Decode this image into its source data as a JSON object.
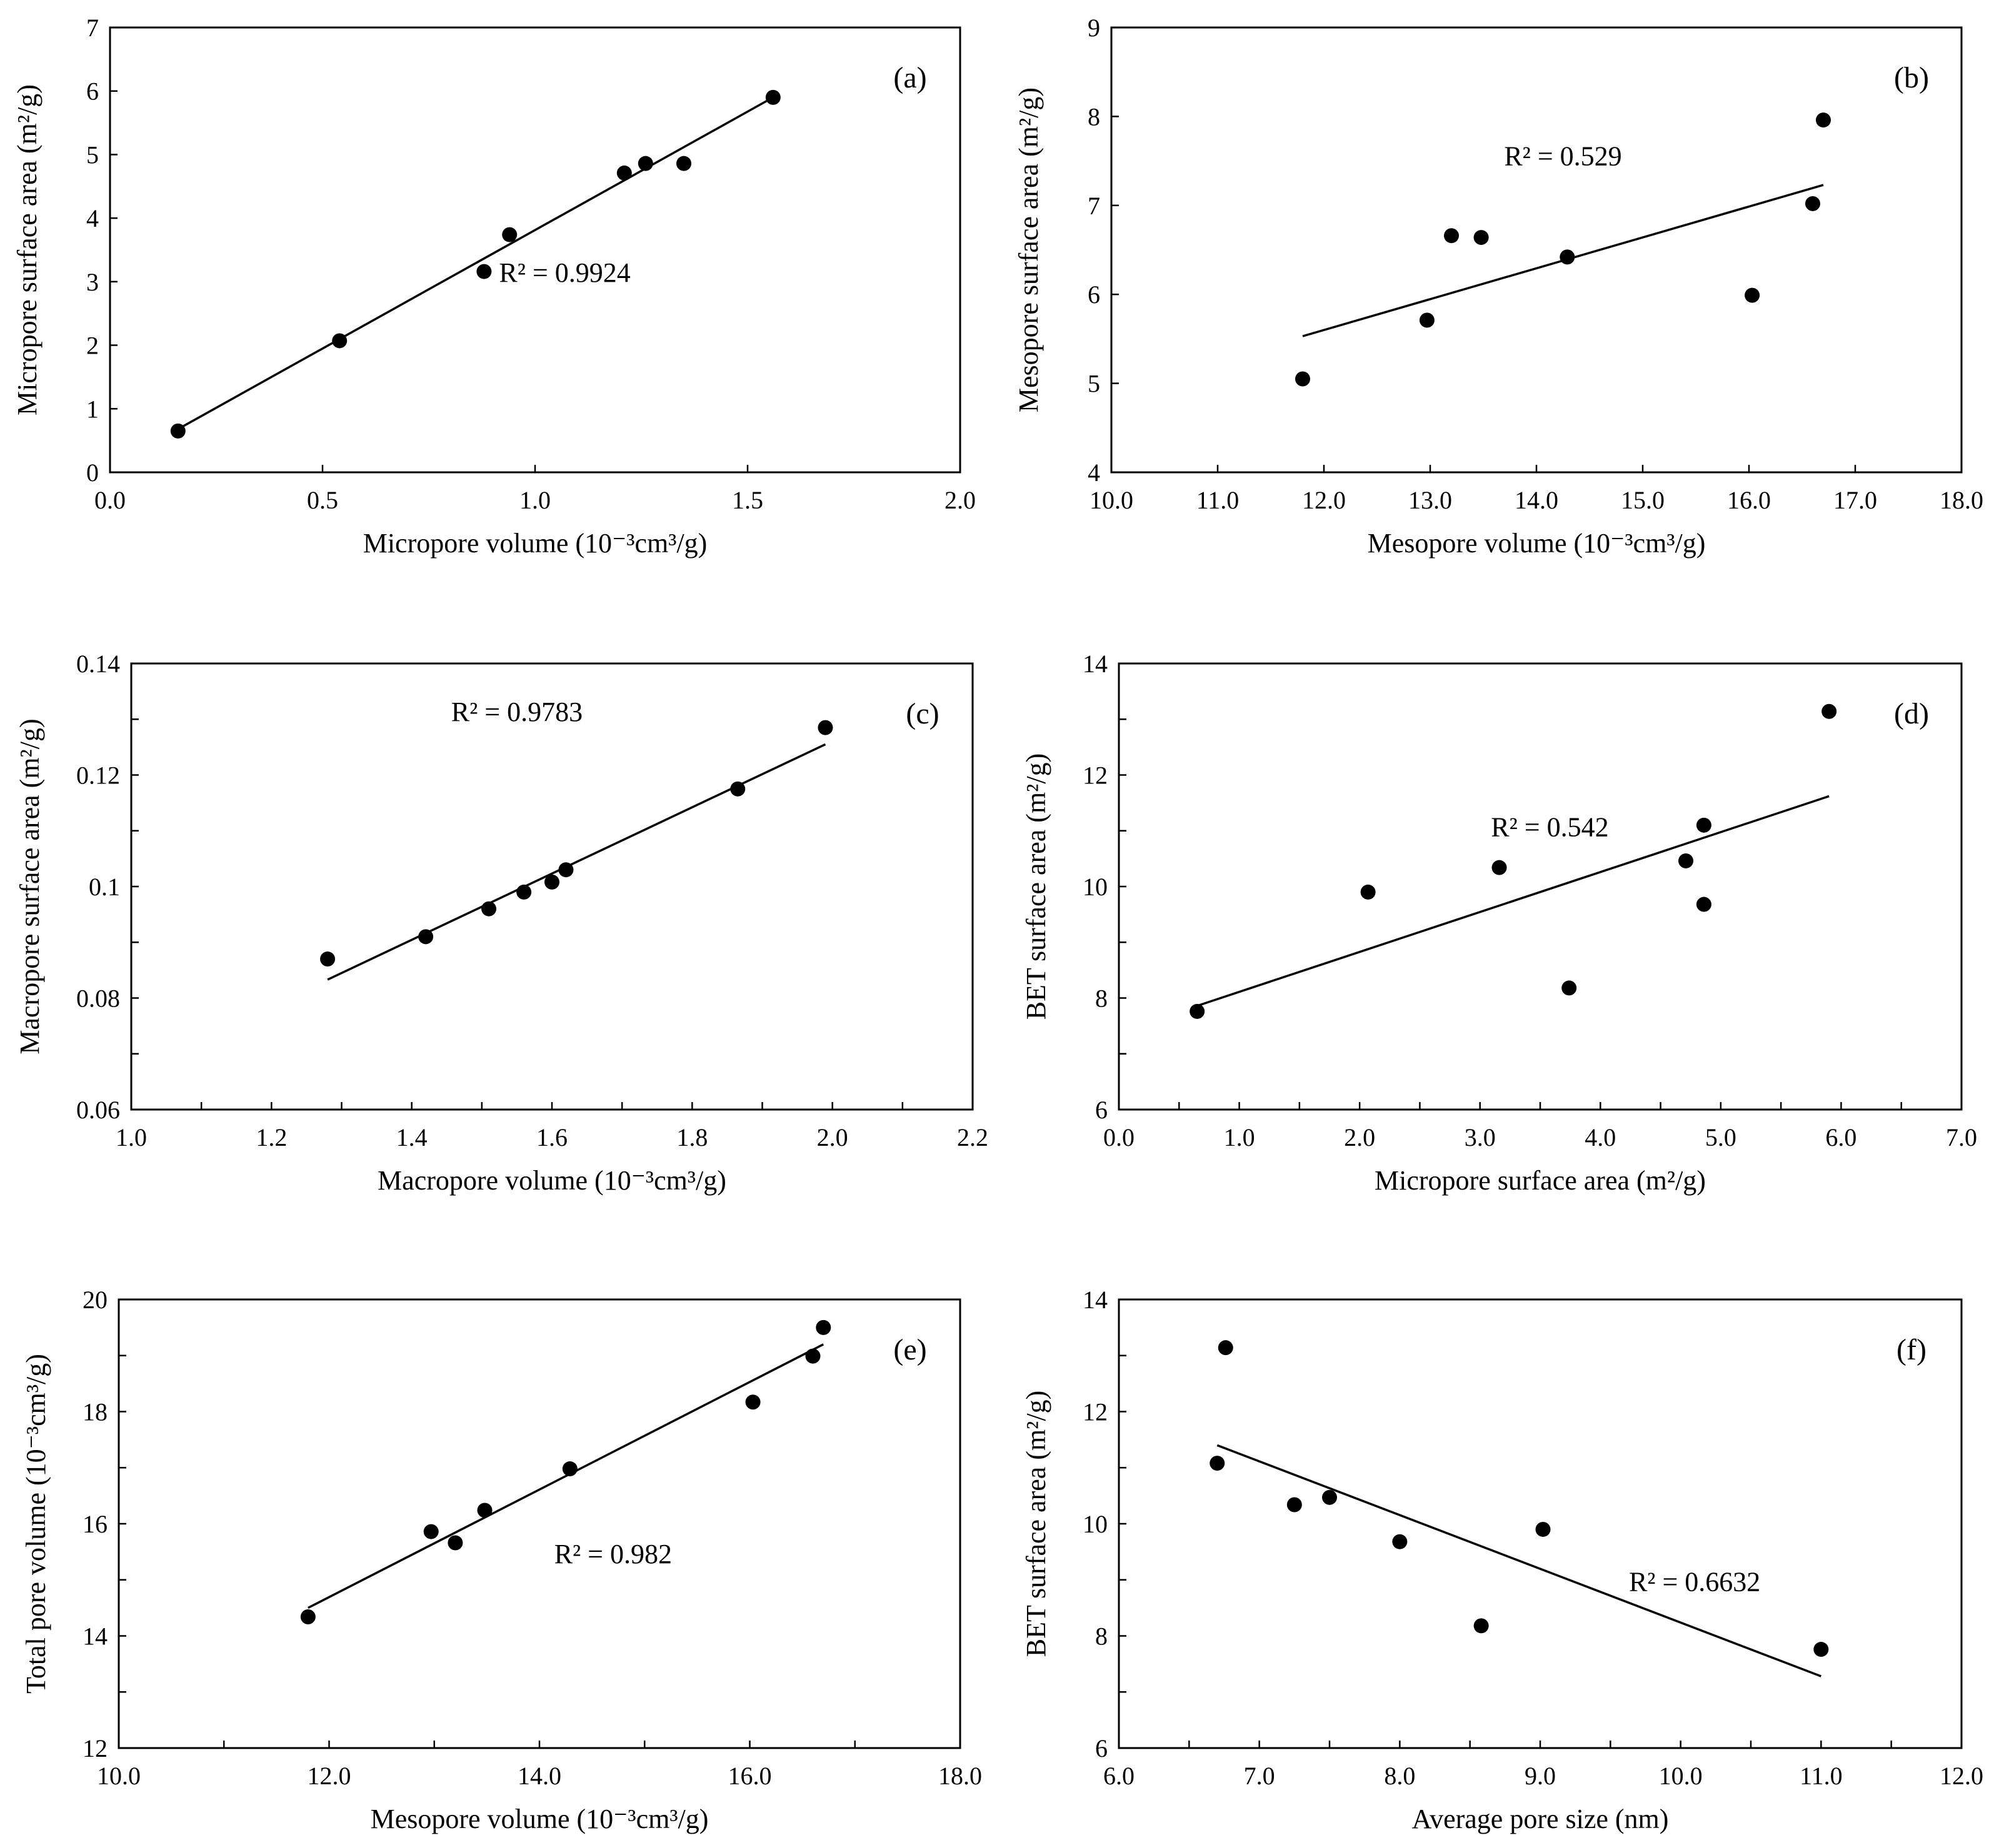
{
  "chart_data": [
    {
      "type": "scatter",
      "panel_label": "(a)",
      "xlabel": "Micropore volume (10⁻³cm³/g)",
      "ylabel": "Micropore surface area (m²/g)",
      "xlim": [
        0.0,
        2.0
      ],
      "ylim": [
        0,
        7
      ],
      "xticks": [
        "0.0",
        "0.5",
        "1.0",
        "1.5",
        "2.0"
      ],
      "yticks": [
        "0",
        "1",
        "2",
        "3",
        "4",
        "5",
        "6",
        "7"
      ],
      "points": [
        {
          "x": 0.16,
          "y": 0.65
        },
        {
          "x": 0.54,
          "y": 2.07
        },
        {
          "x": 0.88,
          "y": 3.16
        },
        {
          "x": 0.94,
          "y": 3.74
        },
        {
          "x": 1.21,
          "y": 4.71
        },
        {
          "x": 1.26,
          "y": 4.86
        },
        {
          "x": 1.35,
          "y": 4.86
        },
        {
          "x": 1.56,
          "y": 5.9
        }
      ],
      "trendline": {
        "x": [
          0.16,
          1.56
        ],
        "y": [
          0.68,
          5.9
        ]
      },
      "r2_text": "R² = 0.9924",
      "r2_pos": {
        "x": 1.07,
        "y": 3.0
      }
    },
    {
      "type": "scatter",
      "panel_label": "(b)",
      "xlabel": "Mesopore volume (10⁻³cm³/g)",
      "ylabel": "Mesopore surface area (m²/g)",
      "xlim": [
        10.0,
        18.0
      ],
      "ylim": [
        4,
        9
      ],
      "xticks": [
        "10.0",
        "11.0",
        "12.0",
        "13.0",
        "14.0",
        "15.0",
        "16.0",
        "17.0",
        "18.0"
      ],
      "yticks": [
        "4",
        "5",
        "6",
        "7",
        "8",
        "9"
      ],
      "points": [
        {
          "x": 11.8,
          "y": 5.05
        },
        {
          "x": 12.97,
          "y": 5.71
        },
        {
          "x": 13.2,
          "y": 6.66
        },
        {
          "x": 13.48,
          "y": 6.64
        },
        {
          "x": 14.29,
          "y": 6.42
        },
        {
          "x": 16.03,
          "y": 5.99
        },
        {
          "x": 16.6,
          "y": 7.02
        },
        {
          "x": 16.7,
          "y": 7.96
        }
      ],
      "trendline": {
        "x": [
          11.8,
          16.7
        ],
        "y": [
          5.53,
          7.23
        ]
      },
      "r2_text": "R² = 0.529",
      "r2_pos": {
        "x": 14.25,
        "y": 7.45
      }
    },
    {
      "type": "scatter",
      "panel_label": "(c)",
      "xlabel": "Macropore volume (10⁻³cm³/g)",
      "ylabel": "Macropore surface area (m²/g)",
      "xlim": [
        1.0,
        2.2
      ],
      "ylim": [
        0.06,
        0.14
      ],
      "xticks": [
        "1.0",
        "1.2",
        "1.4",
        "1.6",
        "1.8",
        "2.0",
        "2.2"
      ],
      "yticks": [
        "0.06",
        "0.08",
        "0.1",
        "0.12",
        "0.14"
      ],
      "points": [
        {
          "x": 1.28,
          "y": 0.087
        },
        {
          "x": 1.42,
          "y": 0.091
        },
        {
          "x": 1.51,
          "y": 0.096
        },
        {
          "x": 1.56,
          "y": 0.099
        },
        {
          "x": 1.6,
          "y": 0.1008
        },
        {
          "x": 1.62,
          "y": 0.103
        },
        {
          "x": 1.865,
          "y": 0.1175
        },
        {
          "x": 1.99,
          "y": 0.1285
        }
      ],
      "trendline": {
        "x": [
          1.28,
          1.99
        ],
        "y": [
          0.0833,
          0.1255
        ]
      },
      "r2_text": "R² = 0.9783",
      "r2_pos": {
        "x": 1.55,
        "y": 0.1297
      }
    },
    {
      "type": "scatter",
      "panel_label": "(d)",
      "xlabel": "Micropore surface area (m²/g)",
      "ylabel": "BET surface area (m²/g)",
      "xlim": [
        0.0,
        7.0
      ],
      "ylim": [
        6,
        14
      ],
      "xticks": [
        "0.0",
        "1.0",
        "2.0",
        "3.0",
        "4.0",
        "5.0",
        "6.0",
        "7.0"
      ],
      "yticks": [
        "6",
        "8",
        "10",
        "12",
        "14"
      ],
      "points": [
        {
          "x": 0.65,
          "y": 7.76
        },
        {
          "x": 2.07,
          "y": 9.9
        },
        {
          "x": 3.16,
          "y": 10.34
        },
        {
          "x": 3.74,
          "y": 8.18
        },
        {
          "x": 4.71,
          "y": 10.46
        },
        {
          "x": 4.86,
          "y": 11.1
        },
        {
          "x": 4.86,
          "y": 9.68
        },
        {
          "x": 5.9,
          "y": 13.14
        }
      ],
      "trendline": {
        "x": [
          0.65,
          5.9
        ],
        "y": [
          7.86,
          11.62
        ]
      },
      "r2_text": "R² = 0.542",
      "r2_pos": {
        "x": 3.58,
        "y": 10.9
      }
    },
    {
      "type": "scatter",
      "panel_label": "(e)",
      "xlabel": "Mesopore volume (10⁻³cm³/g)",
      "ylabel": "Total pore volume (10⁻³cm³/g)",
      "xlim": [
        10.0,
        18.0
      ],
      "ylim": [
        12,
        20
      ],
      "xticks": [
        "10.0",
        "12.0",
        "14.0",
        "16.0",
        "18.0"
      ],
      "yticks": [
        "12",
        "14",
        "16",
        "18",
        "20"
      ],
      "points": [
        {
          "x": 11.8,
          "y": 14.34
        },
        {
          "x": 12.97,
          "y": 15.86
        },
        {
          "x": 13.2,
          "y": 15.66
        },
        {
          "x": 13.48,
          "y": 16.24
        },
        {
          "x": 14.29,
          "y": 16.98
        },
        {
          "x": 16.03,
          "y": 18.17
        },
        {
          "x": 16.6,
          "y": 18.99
        },
        {
          "x": 16.7,
          "y": 19.5
        }
      ],
      "trendline": {
        "x": [
          11.8,
          16.7
        ],
        "y": [
          14.5,
          19.2
        ]
      },
      "r2_text": "R² = 0.982",
      "r2_pos": {
        "x": 14.7,
        "y": 15.3
      }
    },
    {
      "type": "scatter",
      "panel_label": "(f)",
      "xlabel": "Average pore size (nm)",
      "ylabel": "BET surface area (m²/g)",
      "xlim": [
        6.0,
        12.0
      ],
      "ylim": [
        6,
        14
      ],
      "xticks": [
        "6.0",
        "7.0",
        "8.0",
        "9.0",
        "10.0",
        "11.0",
        "12.0"
      ],
      "yticks": [
        "6",
        "8",
        "10",
        "12",
        "14"
      ],
      "points": [
        {
          "x": 6.7,
          "y": 11.08
        },
        {
          "x": 6.76,
          "y": 13.14
        },
        {
          "x": 7.25,
          "y": 10.34
        },
        {
          "x": 7.5,
          "y": 10.47
        },
        {
          "x": 8.0,
          "y": 9.68
        },
        {
          "x": 8.58,
          "y": 8.18
        },
        {
          "x": 9.02,
          "y": 9.9
        },
        {
          "x": 11.0,
          "y": 7.76
        }
      ],
      "trendline": {
        "x": [
          6.7,
          11.0
        ],
        "y": [
          11.4,
          7.28
        ]
      },
      "r2_text": "R² = 0.6632",
      "r2_pos": {
        "x": 10.1,
        "y": 8.8
      }
    }
  ]
}
